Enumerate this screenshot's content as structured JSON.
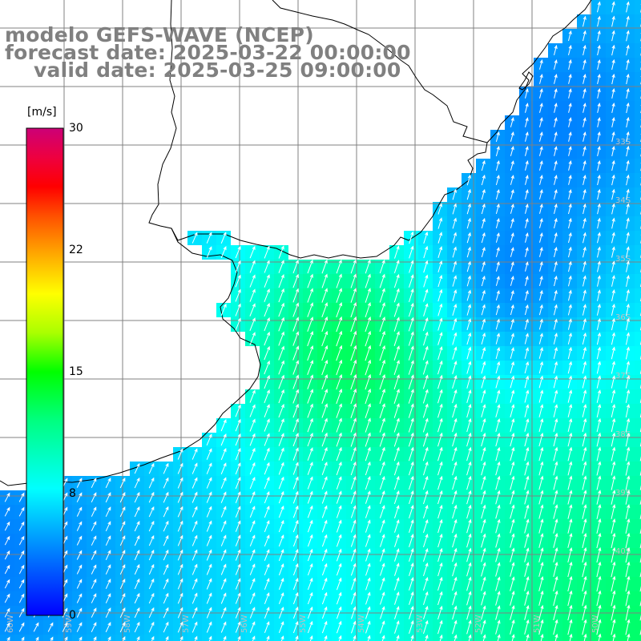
{
  "title": {
    "line1": "modelo GEFS-WAVE (NCEP)",
    "line2": "forecast date: 2025-03-22 00:00:00",
    "line3": "valid date: 2025-03-25 09:00:00"
  },
  "colorbar": {
    "unit": "[m/s]",
    "ticks": [
      "30",
      "22",
      "15",
      "8",
      "0"
    ],
    "tick_values": [
      30,
      22,
      15,
      8,
      0
    ],
    "range": [
      0,
      30
    ],
    "palette": [
      "#0000ff",
      "#00aaff",
      "#00ffff",
      "#00ff80",
      "#00ff00",
      "#aaff00",
      "#ffff00",
      "#ffaa00",
      "#ff6000",
      "#ff0000",
      "#ee0040",
      "#cc0077"
    ]
  },
  "map": {
    "region": "South Atlantic coast — Río de la Plata / Uruguay / southern Brazil",
    "land_color": "#ffffff",
    "grid_color": "#808080",
    "lat_labels": [
      "33S",
      "34S",
      "35S",
      "36S",
      "37S",
      "38S",
      "39S",
      "40S"
    ],
    "lon_labels": [
      "60W",
      "59W",
      "58W",
      "57W",
      "56W",
      "55W",
      "54W",
      "53W",
      "52W",
      "51W",
      "50W"
    ],
    "wind_field": {
      "variable": "wind speed at 10 m",
      "units": "m/s",
      "description": "arrows point north-north-east; speeds ~4-9 m/s near shelf, ~12 m/s in estuary mouth and far south-east"
    }
  }
}
